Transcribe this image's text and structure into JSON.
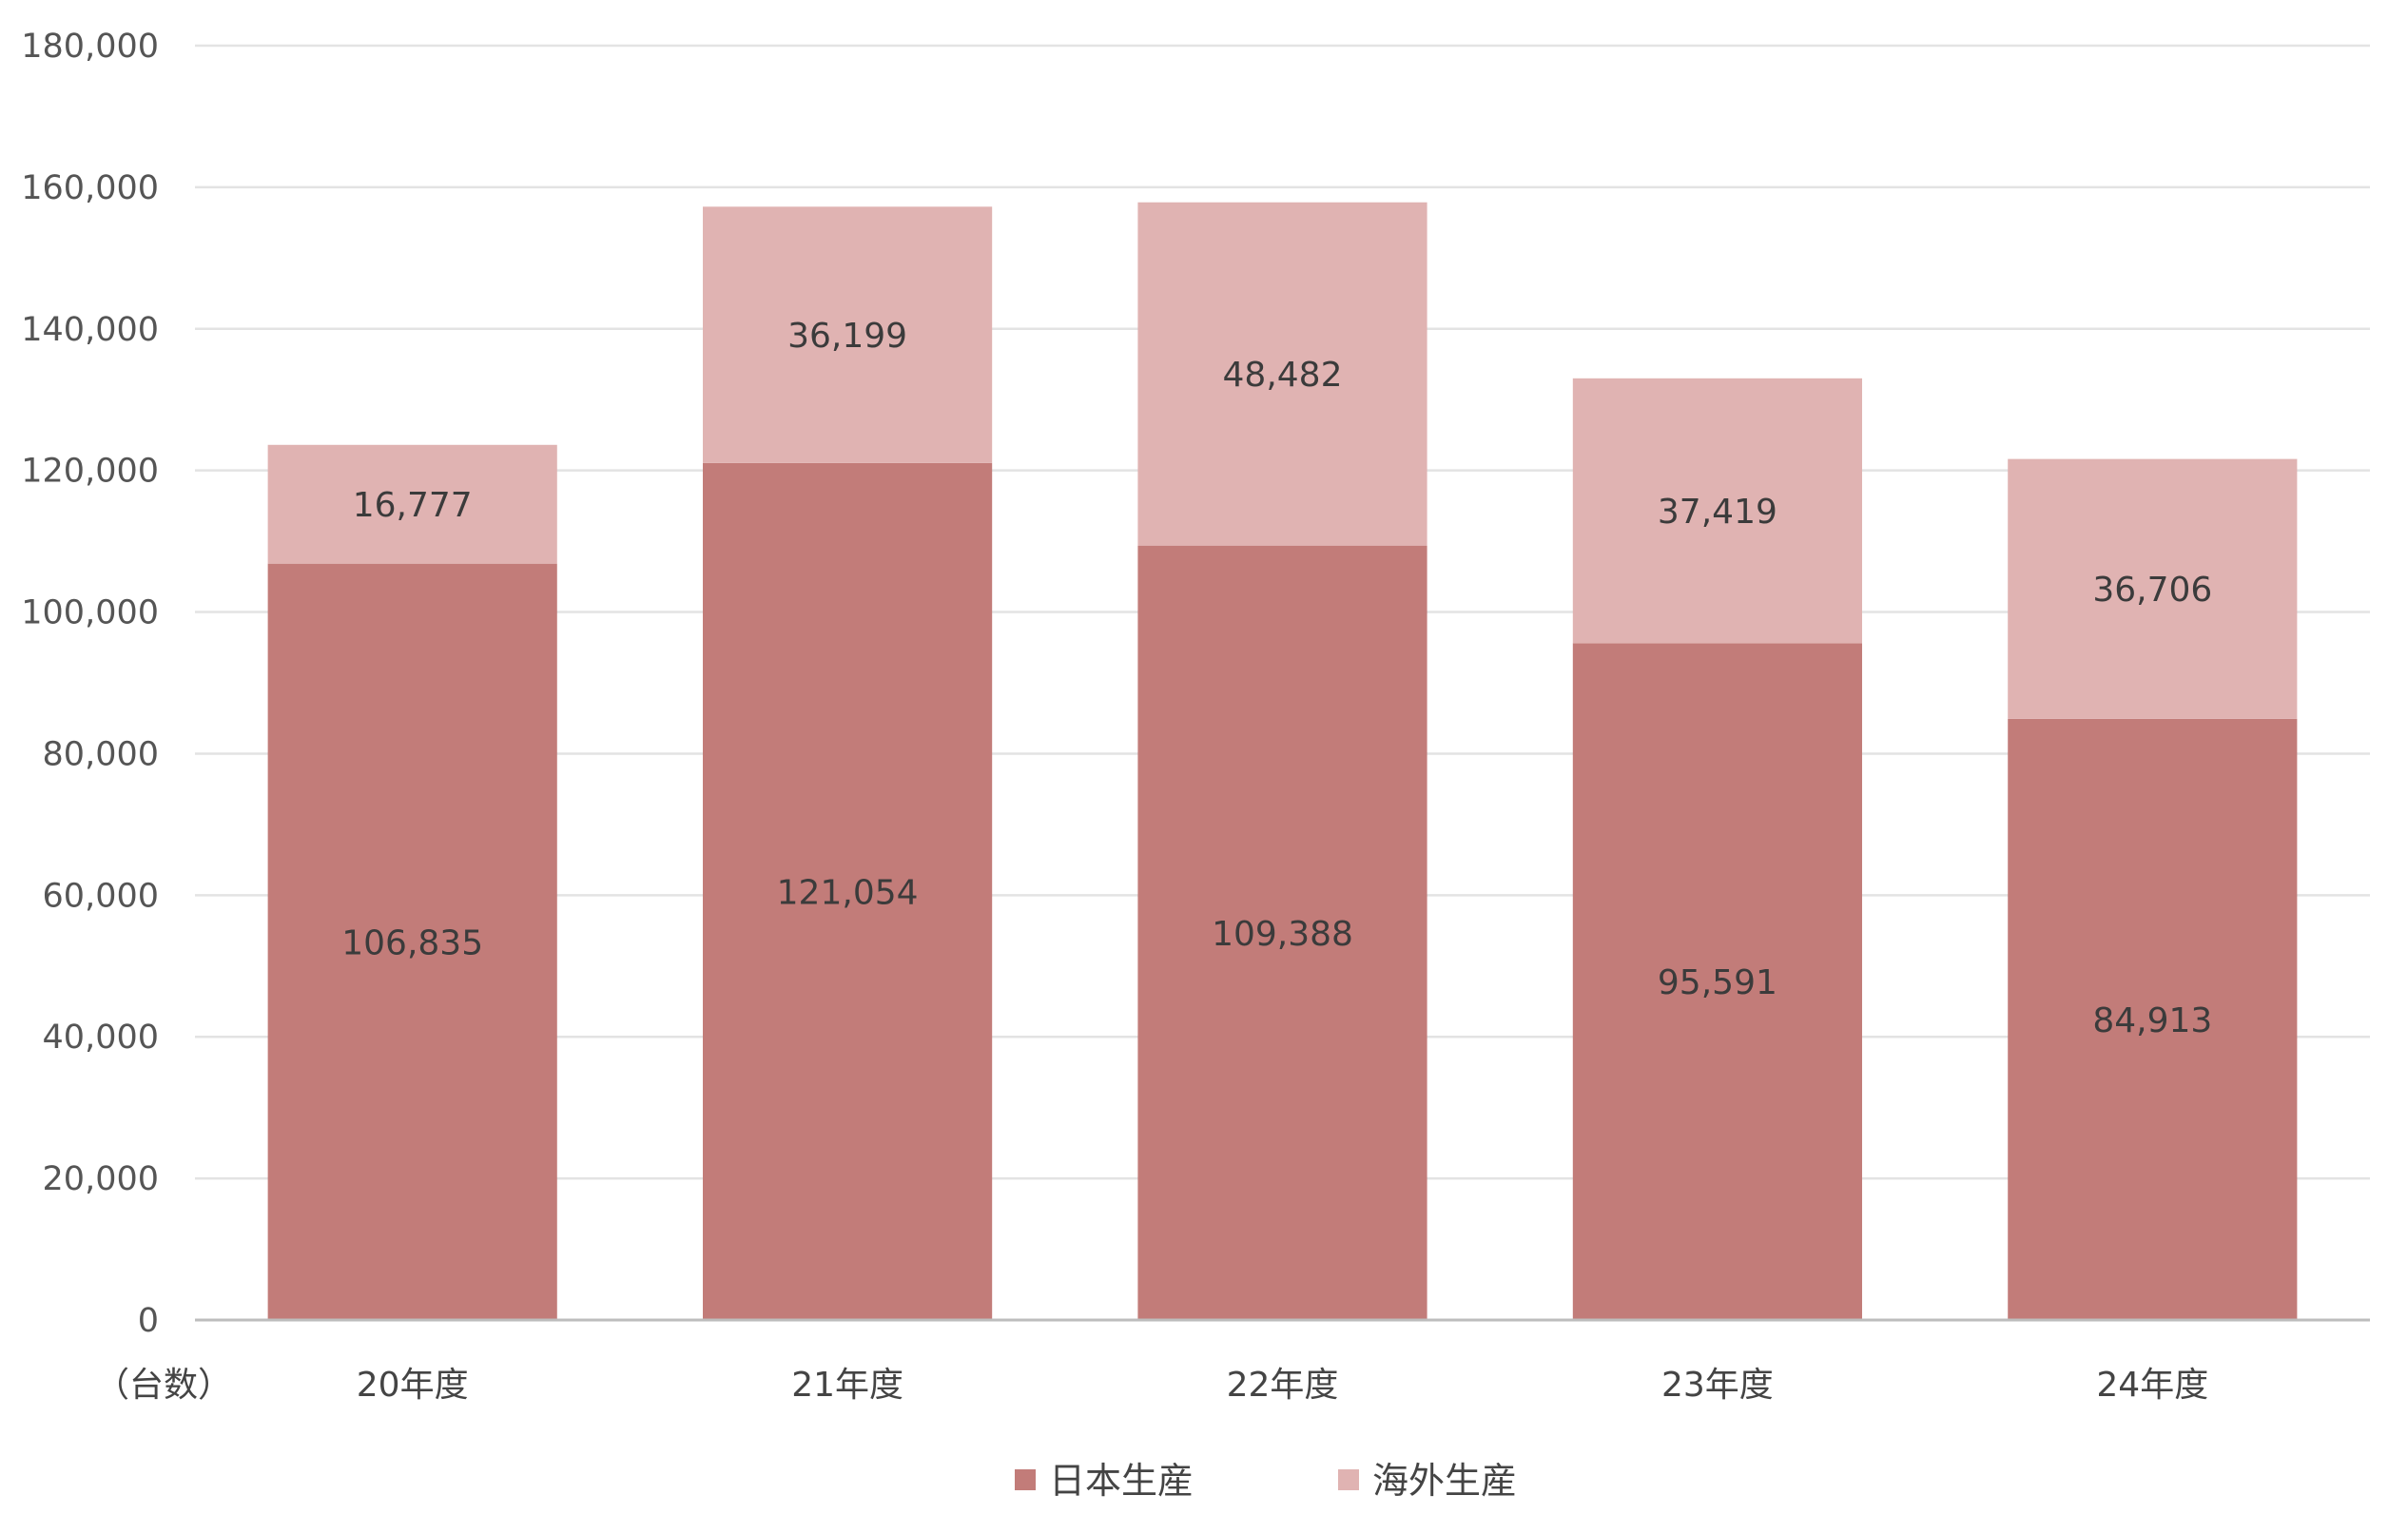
{
  "chart_data": {
    "type": "bar",
    "stacked": true,
    "categories": [
      "20年度",
      "21年度",
      "22年度",
      "23年度",
      "24年度"
    ],
    "series": [
      {
        "name": "日本生産",
        "color": "#c27c79",
        "values": [
          106835,
          121054,
          109388,
          95591,
          84913
        ]
      },
      {
        "name": "海外生産",
        "color": "#e0b3b2",
        "values": [
          16777,
          36199,
          48482,
          37419,
          36706
        ]
      }
    ],
    "y_ticks": [
      "0",
      "20,000",
      "40,000",
      "60,000",
      "80,000",
      "100,000",
      "120,000",
      "140,000",
      "160,000",
      "180,000"
    ],
    "ylim": [
      0,
      180000
    ],
    "unit_label": "（台数）",
    "grid": true,
    "legend_position": "bottom"
  }
}
